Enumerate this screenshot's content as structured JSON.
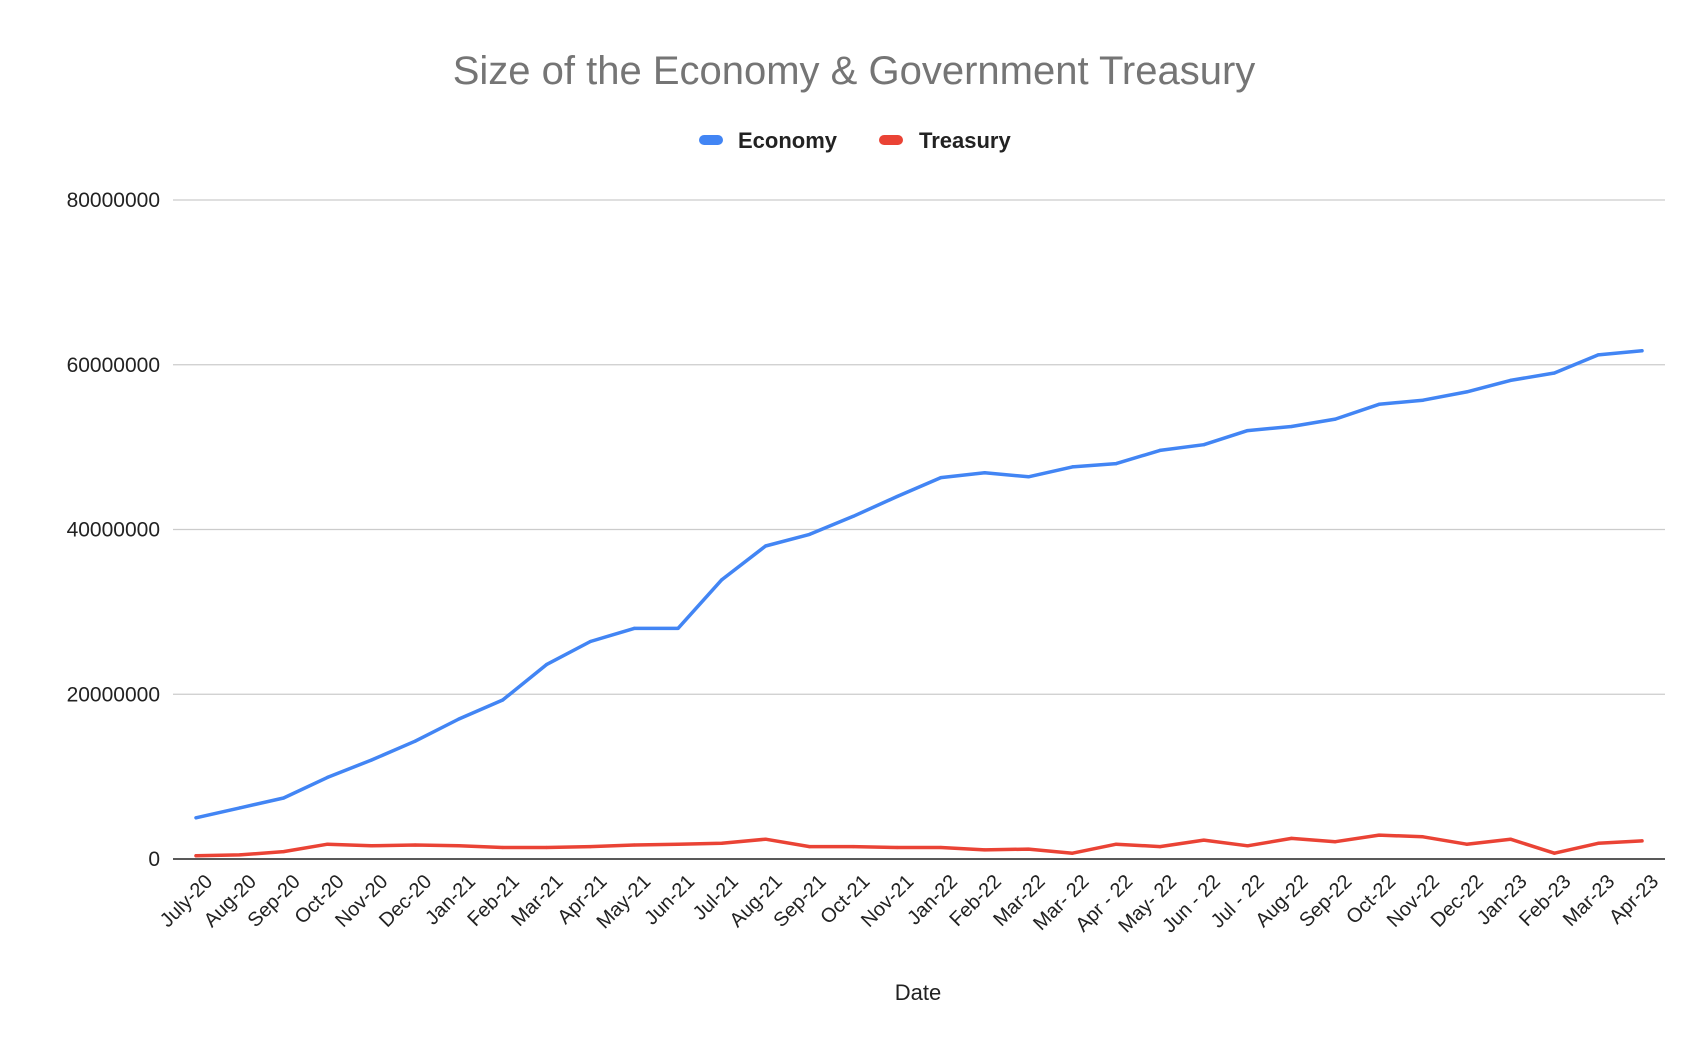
{
  "chart_data": {
    "type": "line",
    "title": "Size of the Economy & Government Treasury",
    "xlabel": "Date",
    "ylabel": "",
    "ylim": [
      0,
      80000000
    ],
    "yticks": [
      0,
      20000000,
      40000000,
      60000000,
      80000000
    ],
    "grid": true,
    "legend_position": "top-center",
    "categories": [
      "July-20",
      "Aug-20",
      "Sep-20",
      "Oct-20",
      "Nov-20",
      "Dec-20",
      "Jan-21",
      "Feb-21",
      "Mar-21",
      "Apr-21",
      "May-21",
      "Jun-21",
      "Jul-21",
      "Aug-21",
      "Sep-21",
      "Oct-21",
      "Nov-21",
      "Jan-22",
      "Feb-22",
      "Mar-22",
      "Mar- 22",
      "Apr - 22",
      "May- 22",
      "Jun - 22",
      "Jul - 22",
      "Aug-22",
      "Sep-22",
      "Oct-22",
      "Nov-22",
      "Dec-22",
      "Jan-23",
      "Feb-23",
      "Mar-23",
      "Apr-23"
    ],
    "series": [
      {
        "name": "Economy",
        "color": "#4285f4",
        "values": [
          5000000,
          6200000,
          7400000,
          9900000,
          12000000,
          14300000,
          17000000,
          19300000,
          23600000,
          26400000,
          28000000,
          28000000,
          33900000,
          38000000,
          39400000,
          41600000,
          44000000,
          46300000,
          46900000,
          46400000,
          47600000,
          48000000,
          49600000,
          50300000,
          52000000,
          52500000,
          53400000,
          55200000,
          55700000,
          56700000,
          58100000,
          59000000,
          61200000,
          61700000
        ]
      },
      {
        "name": "Treasury",
        "color": "#ea4335",
        "values": [
          400000,
          500000,
          900000,
          1800000,
          1600000,
          1700000,
          1600000,
          1400000,
          1400000,
          1500000,
          1700000,
          1800000,
          1900000,
          2400000,
          1500000,
          1500000,
          1400000,
          1400000,
          1100000,
          1200000,
          700000,
          1800000,
          1500000,
          2300000,
          1600000,
          2500000,
          2100000,
          2900000,
          2700000,
          1800000,
          2400000,
          700000,
          1900000,
          2200000
        ]
      }
    ]
  }
}
